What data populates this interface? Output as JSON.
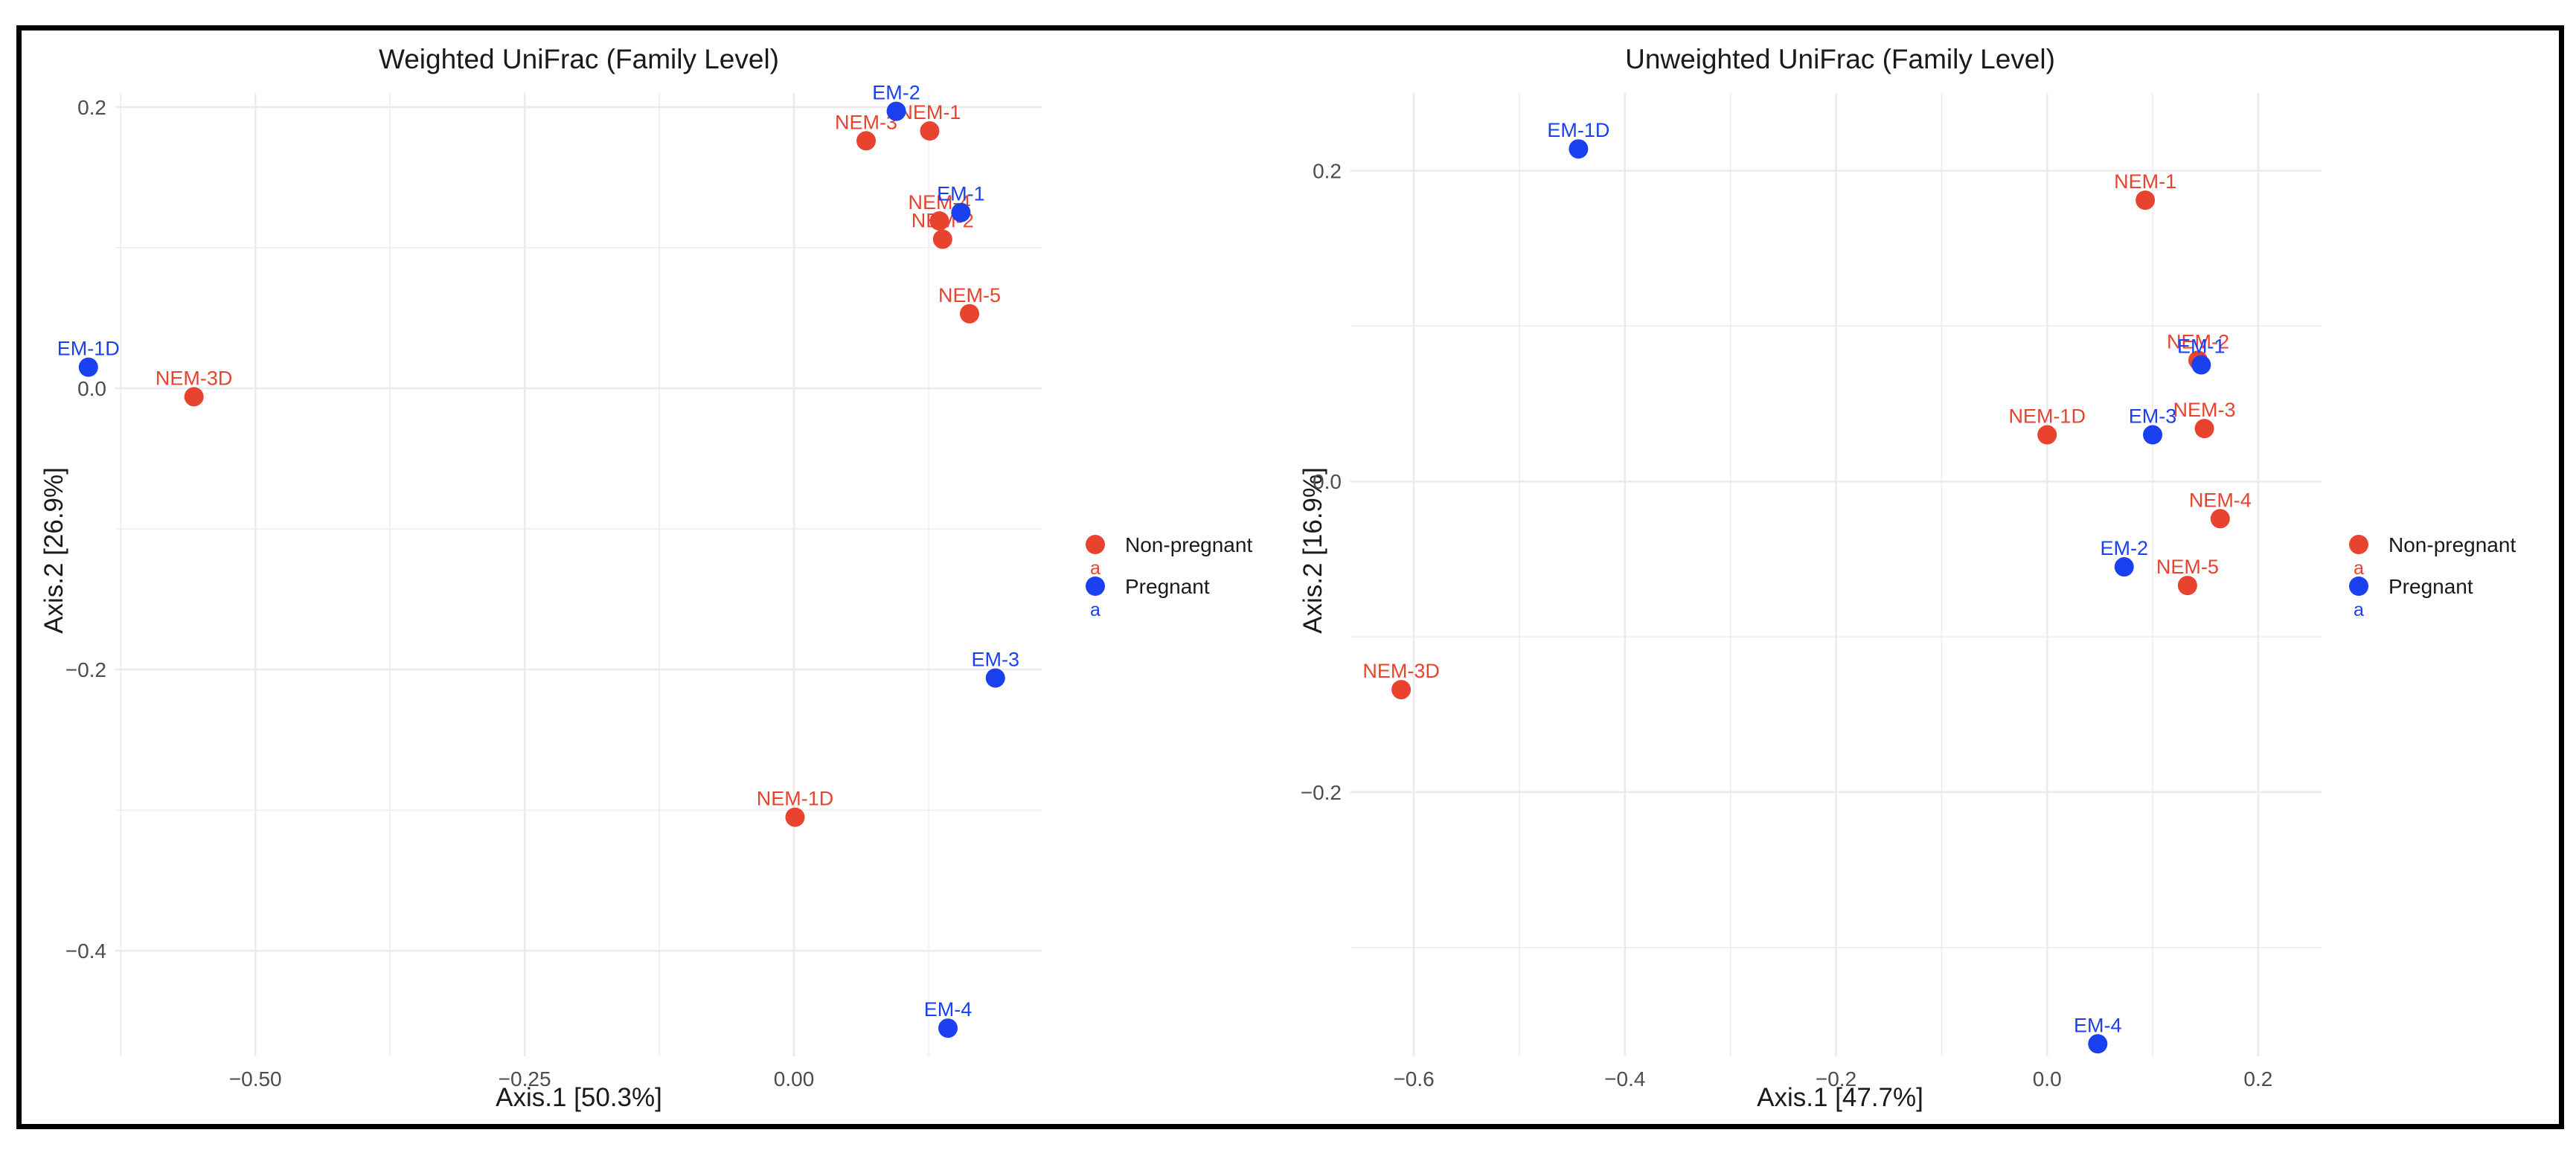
{
  "colors": {
    "non_pregnant": "#e8432f",
    "pregnant": "#1a40f0",
    "grid": "#ebebeb",
    "axis_text": "#4d4d4d"
  },
  "chart_data": [
    {
      "type": "scatter",
      "title": "Weighted UniFrac (Family Level)",
      "xlabel": "Axis.1   [50.3%]",
      "ylabel": "Axis.2   [26.9%]",
      "xlim": [
        -0.63,
        0.23
      ],
      "ylim": [
        -0.475,
        0.21
      ],
      "x_ticks": [
        -0.5,
        -0.25,
        0.0
      ],
      "x_tick_labels": [
        "−0.50",
        "−0.25",
        "0.00"
      ],
      "y_ticks": [
        -0.4,
        -0.2,
        0.0,
        0.2
      ],
      "y_tick_labels": [
        "−0.4",
        "−0.2",
        "0.0",
        "0.2"
      ],
      "legend": {
        "position": "right",
        "entries": [
          {
            "label": "Non-pregnant",
            "sublabel": "a",
            "group": "non_pregnant"
          },
          {
            "label": "Pregnant",
            "sublabel": "a",
            "group": "pregnant"
          }
        ]
      },
      "series": [
        {
          "name": "Non-pregnant",
          "points": [
            {
              "label": "NEM-1",
              "x": 0.126,
              "y": 0.183
            },
            {
              "label": "NEM-3",
              "x": 0.067,
              "y": 0.176
            },
            {
              "label": "NEM-4",
              "x": 0.135,
              "y": 0.119
            },
            {
              "label": "NEM-2",
              "x": 0.138,
              "y": 0.106
            },
            {
              "label": "NEM-5",
              "x": 0.163,
              "y": 0.053
            },
            {
              "label": "NEM-3D",
              "x": -0.557,
              "y": -0.006
            },
            {
              "label": "NEM-1D",
              "x": 0.001,
              "y": -0.305
            }
          ]
        },
        {
          "name": "Pregnant",
          "points": [
            {
              "label": "EM-2",
              "x": 0.095,
              "y": 0.197
            },
            {
              "label": "EM-1",
              "x": 0.155,
              "y": 0.125
            },
            {
              "label": "EM-1D",
              "x": -0.655,
              "y": 0.015
            },
            {
              "label": "EM-3",
              "x": 0.187,
              "y": -0.206
            },
            {
              "label": "EM-4",
              "x": 0.143,
              "y": -0.455
            }
          ]
        }
      ]
    },
    {
      "type": "scatter",
      "title": "Unweighted UniFrac (Family Level)",
      "xlabel": "Axis.1   [47.7%]",
      "ylabel": "Axis.2   [16.9%]",
      "xlim": [
        -0.66,
        0.26
      ],
      "ylim": [
        -0.37,
        0.25
      ],
      "x_ticks": [
        -0.6,
        -0.4,
        -0.2,
        0.0,
        0.2
      ],
      "x_tick_labels": [
        "−0.6",
        "−0.4",
        "−0.2",
        "0.0",
        "0.2"
      ],
      "y_ticks": [
        -0.2,
        0.0,
        0.2
      ],
      "y_tick_labels": [
        "−0.2",
        "0.0",
        "0.2"
      ],
      "legend": {
        "position": "right",
        "entries": [
          {
            "label": "Non-pregnant",
            "sublabel": "a",
            "group": "non_pregnant"
          },
          {
            "label": "Pregnant",
            "sublabel": "a",
            "group": "pregnant"
          }
        ]
      },
      "series": [
        {
          "name": "Non-pregnant",
          "points": [
            {
              "label": "NEM-1",
              "x": 0.093,
              "y": 0.181
            },
            {
              "label": "NEM-2",
              "x": 0.143,
              "y": 0.078
            },
            {
              "label": "NEM-1D",
              "x": 0.0,
              "y": 0.03
            },
            {
              "label": "NEM-3",
              "x": 0.149,
              "y": 0.034
            },
            {
              "label": "NEM-4",
              "x": 0.164,
              "y": -0.024
            },
            {
              "label": "NEM-5",
              "x": 0.133,
              "y": -0.067
            },
            {
              "label": "NEM-3D",
              "x": -0.612,
              "y": -0.134
            }
          ]
        },
        {
          "name": "Pregnant",
          "points": [
            {
              "label": "EM-1D",
              "x": -0.444,
              "y": 0.214
            },
            {
              "label": "EM-1",
              "x": 0.146,
              "y": 0.075
            },
            {
              "label": "EM-3",
              "x": 0.1,
              "y": 0.03
            },
            {
              "label": "EM-2",
              "x": 0.073,
              "y": -0.055
            },
            {
              "label": "EM-4",
              "x": 0.048,
              "y": -0.362
            }
          ]
        }
      ]
    }
  ]
}
